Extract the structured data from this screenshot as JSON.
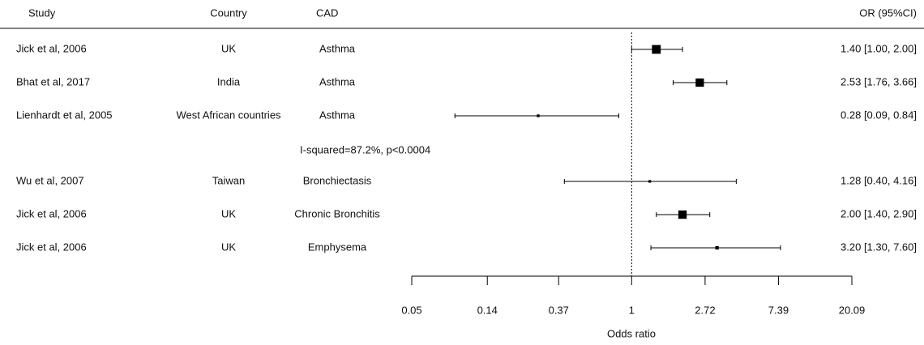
{
  "chart_data": {
    "type": "forest",
    "headers": [
      "Study",
      "Country",
      "CAD",
      "OR (95%CI)"
    ],
    "studies": [
      "Jick et al, 2006",
      "Bhat et al, 2017",
      "Lienhardt et al, 2005",
      "Wu et al, 2007",
      "Jick et al, 2006",
      "Jick et al, 2006"
    ],
    "countries": [
      "UK",
      "India",
      "West African countries",
      "Taiwan",
      "UK",
      "UK"
    ],
    "cad": [
      "Asthma",
      "Asthma",
      "Asthma",
      "Bronchiectasis",
      "Chronic Bronchitis",
      "Emphysema"
    ],
    "values": [
      1.4,
      2.53,
      0.28,
      1.28,
      2.0,
      3.2
    ],
    "lower": [
      1.0,
      1.76,
      0.09,
      0.4,
      1.4,
      1.3
    ],
    "upper": [
      2.0,
      3.66,
      0.84,
      4.16,
      2.9,
      7.6
    ],
    "value_labels": [
      "1.40 [1.00, 2.00]",
      "2.53 [1.76, 3.66]",
      "0.28 [0.09, 0.84]",
      "1.28 [0.40, 4.16]",
      "2.00 [1.40, 2.90]",
      "3.20 [1.30, 7.60]"
    ],
    "annotation": "I-squared=87.2%, p<0.0004",
    "xlabel": "Odds ratio",
    "xlim": [
      0.05,
      20.09
    ],
    "xticks": [
      0.05,
      0.14,
      0.37,
      1,
      2.72,
      7.39,
      20.09
    ],
    "log_scale": true,
    "reference": 1,
    "color": "#000000"
  }
}
